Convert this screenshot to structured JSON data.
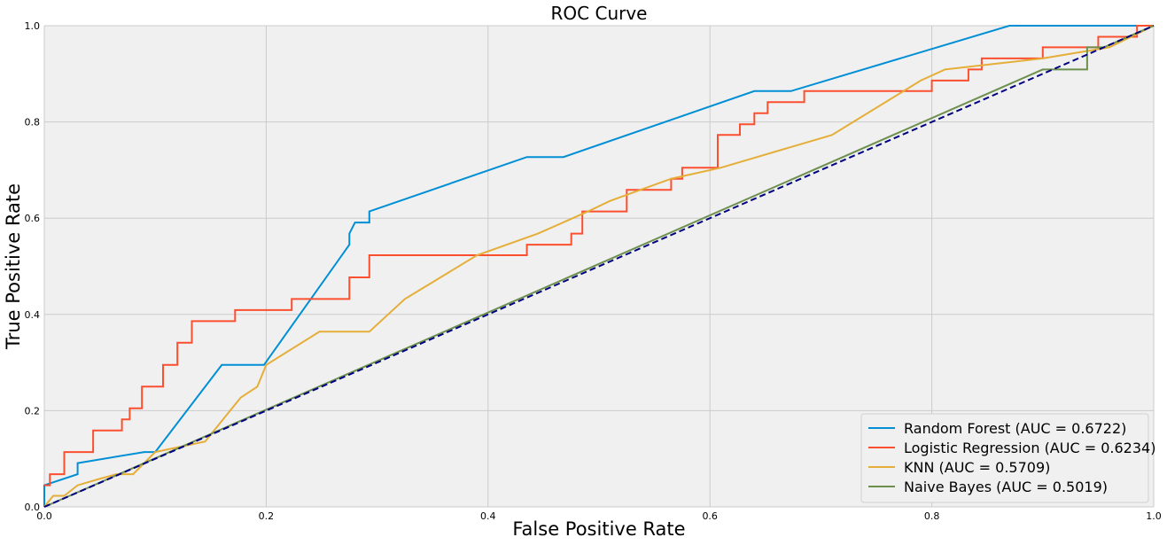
{
  "chart_data": {
    "type": "line",
    "title": "ROC Curve",
    "xlabel": "False Positive Rate",
    "ylabel": "True Positive Rate",
    "xlim": [
      0,
      1
    ],
    "ylim": [
      0,
      1
    ],
    "xticks": [
      "0.0",
      "0.2",
      "0.4",
      "0.6",
      "0.8",
      "1.0"
    ],
    "yticks": [
      "0.0",
      "0.2",
      "0.4",
      "0.6",
      "0.8",
      "1.0"
    ],
    "grid": true,
    "legend_position": "lower-right",
    "series": [
      {
        "name": "Random Forest (AUC = 0.6722)",
        "color": "#008fd5",
        "points": [
          [
            0,
            0
          ],
          [
            0,
            0.045
          ],
          [
            0.03,
            0.068
          ],
          [
            0.03,
            0.091
          ],
          [
            0.09,
            0.114
          ],
          [
            0.1,
            0.114
          ],
          [
            0.16,
            0.295
          ],
          [
            0.198,
            0.295
          ],
          [
            0.275,
            0.545
          ],
          [
            0.275,
            0.568
          ],
          [
            0.28,
            0.591
          ],
          [
            0.293,
            0.591
          ],
          [
            0.293,
            0.614
          ],
          [
            0.435,
            0.727
          ],
          [
            0.468,
            0.727
          ],
          [
            0.64,
            0.864
          ],
          [
            0.673,
            0.864
          ],
          [
            0.87,
            1.0
          ],
          [
            1.0,
            1.0
          ]
        ]
      },
      {
        "name": "Logistic Regression (AUC = 0.6234)",
        "color": "#fc4f30",
        "points": [
          [
            0,
            0.045
          ],
          [
            0.005,
            0.045
          ],
          [
            0.005,
            0.068
          ],
          [
            0.018,
            0.068
          ],
          [
            0.018,
            0.114
          ],
          [
            0.044,
            0.114
          ],
          [
            0.044,
            0.159
          ],
          [
            0.07,
            0.159
          ],
          [
            0.07,
            0.182
          ],
          [
            0.077,
            0.182
          ],
          [
            0.077,
            0.205
          ],
          [
            0.088,
            0.205
          ],
          [
            0.088,
            0.25
          ],
          [
            0.107,
            0.25
          ],
          [
            0.107,
            0.295
          ],
          [
            0.12,
            0.295
          ],
          [
            0.12,
            0.341
          ],
          [
            0.133,
            0.341
          ],
          [
            0.133,
            0.386
          ],
          [
            0.172,
            0.386
          ],
          [
            0.172,
            0.409
          ],
          [
            0.223,
            0.409
          ],
          [
            0.223,
            0.432
          ],
          [
            0.275,
            0.432
          ],
          [
            0.275,
            0.477
          ],
          [
            0.293,
            0.477
          ],
          [
            0.293,
            0.523
          ],
          [
            0.435,
            0.523
          ],
          [
            0.435,
            0.545
          ],
          [
            0.475,
            0.545
          ],
          [
            0.475,
            0.568
          ],
          [
            0.485,
            0.568
          ],
          [
            0.485,
            0.614
          ],
          [
            0.525,
            0.614
          ],
          [
            0.525,
            0.659
          ],
          [
            0.565,
            0.659
          ],
          [
            0.565,
            0.682
          ],
          [
            0.575,
            0.682
          ],
          [
            0.575,
            0.705
          ],
          [
            0.607,
            0.705
          ],
          [
            0.607,
            0.773
          ],
          [
            0.627,
            0.773
          ],
          [
            0.627,
            0.795
          ],
          [
            0.64,
            0.795
          ],
          [
            0.64,
            0.818
          ],
          [
            0.652,
            0.818
          ],
          [
            0.652,
            0.841
          ],
          [
            0.685,
            0.841
          ],
          [
            0.685,
            0.864
          ],
          [
            0.8,
            0.864
          ],
          [
            0.8,
            0.886
          ],
          [
            0.833,
            0.886
          ],
          [
            0.833,
            0.909
          ],
          [
            0.845,
            0.909
          ],
          [
            0.845,
            0.932
          ],
          [
            0.9,
            0.932
          ],
          [
            0.9,
            0.955
          ],
          [
            0.95,
            0.955
          ],
          [
            0.95,
            0.977
          ],
          [
            0.985,
            0.977
          ],
          [
            0.985,
            1.0
          ],
          [
            1.0,
            1.0
          ]
        ]
      },
      {
        "name": "KNN (AUC = 0.5709)",
        "color": "#e5ae38",
        "points": [
          [
            0,
            0
          ],
          [
            0.008,
            0.023
          ],
          [
            0.018,
            0.023
          ],
          [
            0.03,
            0.045
          ],
          [
            0.048,
            0.057
          ],
          [
            0.065,
            0.068
          ],
          [
            0.08,
            0.068
          ],
          [
            0.1,
            0.114
          ],
          [
            0.145,
            0.136
          ],
          [
            0.177,
            0.227
          ],
          [
            0.192,
            0.25
          ],
          [
            0.2,
            0.295
          ],
          [
            0.248,
            0.364
          ],
          [
            0.293,
            0.364
          ],
          [
            0.325,
            0.432
          ],
          [
            0.39,
            0.523
          ],
          [
            0.445,
            0.568
          ],
          [
            0.49,
            0.614
          ],
          [
            0.51,
            0.636
          ],
          [
            0.565,
            0.682
          ],
          [
            0.61,
            0.705
          ],
          [
            0.71,
            0.773
          ],
          [
            0.79,
            0.886
          ],
          [
            0.812,
            0.909
          ],
          [
            0.9,
            0.932
          ],
          [
            0.96,
            0.955
          ],
          [
            1.0,
            1.0
          ]
        ]
      },
      {
        "name": "Naive Bayes (AUC = 0.5019)",
        "color": "#6d904f",
        "points": [
          [
            0,
            0
          ],
          [
            0.9,
            0.909
          ],
          [
            0.94,
            0.909
          ],
          [
            0.94,
            0.955
          ],
          [
            0.955,
            0.955
          ],
          [
            1.0,
            1.0
          ]
        ]
      }
    ],
    "reference_line": {
      "color": "#000080",
      "dashed": true,
      "points": [
        [
          0,
          0
        ],
        [
          1,
          1
        ]
      ]
    }
  }
}
